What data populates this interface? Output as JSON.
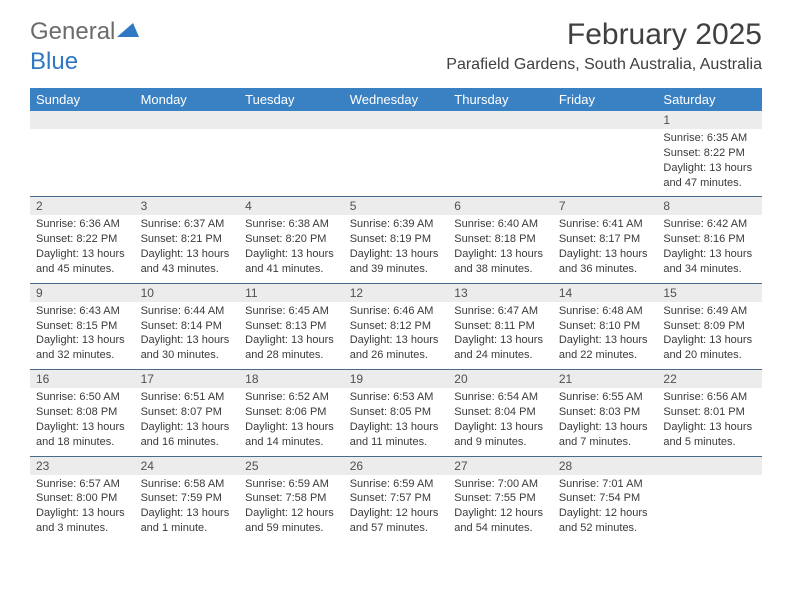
{
  "logo": {
    "text1": "General",
    "text2": "Blue"
  },
  "title": {
    "month": "February 2025",
    "location": "Parafield Gardens, South Australia, Australia"
  },
  "colors": {
    "header_bg": "#3a81c4",
    "header_text": "#ffffff",
    "daynum_bg": "#ececec",
    "week_border": "#4a6a8a",
    "text": "#3a3a3a",
    "logo_gray": "#6b6b6b",
    "logo_blue": "#2f78c3"
  },
  "days": [
    "Sunday",
    "Monday",
    "Tuesday",
    "Wednesday",
    "Thursday",
    "Friday",
    "Saturday"
  ],
  "weeks": [
    {
      "nums": [
        "",
        "",
        "",
        "",
        "",
        "",
        "1"
      ],
      "cells": [
        "",
        "",
        "",
        "",
        "",
        "",
        "Sunrise: 6:35 AM\nSunset: 8:22 PM\nDaylight: 13 hours and 47 minutes."
      ]
    },
    {
      "nums": [
        "2",
        "3",
        "4",
        "5",
        "6",
        "7",
        "8"
      ],
      "cells": [
        "Sunrise: 6:36 AM\nSunset: 8:22 PM\nDaylight: 13 hours and 45 minutes.",
        "Sunrise: 6:37 AM\nSunset: 8:21 PM\nDaylight: 13 hours and 43 minutes.",
        "Sunrise: 6:38 AM\nSunset: 8:20 PM\nDaylight: 13 hours and 41 minutes.",
        "Sunrise: 6:39 AM\nSunset: 8:19 PM\nDaylight: 13 hours and 39 minutes.",
        "Sunrise: 6:40 AM\nSunset: 8:18 PM\nDaylight: 13 hours and 38 minutes.",
        "Sunrise: 6:41 AM\nSunset: 8:17 PM\nDaylight: 13 hours and 36 minutes.",
        "Sunrise: 6:42 AM\nSunset: 8:16 PM\nDaylight: 13 hours and 34 minutes."
      ]
    },
    {
      "nums": [
        "9",
        "10",
        "11",
        "12",
        "13",
        "14",
        "15"
      ],
      "cells": [
        "Sunrise: 6:43 AM\nSunset: 8:15 PM\nDaylight: 13 hours and 32 minutes.",
        "Sunrise: 6:44 AM\nSunset: 8:14 PM\nDaylight: 13 hours and 30 minutes.",
        "Sunrise: 6:45 AM\nSunset: 8:13 PM\nDaylight: 13 hours and 28 minutes.",
        "Sunrise: 6:46 AM\nSunset: 8:12 PM\nDaylight: 13 hours and 26 minutes.",
        "Sunrise: 6:47 AM\nSunset: 8:11 PM\nDaylight: 13 hours and 24 minutes.",
        "Sunrise: 6:48 AM\nSunset: 8:10 PM\nDaylight: 13 hours and 22 minutes.",
        "Sunrise: 6:49 AM\nSunset: 8:09 PM\nDaylight: 13 hours and 20 minutes."
      ]
    },
    {
      "nums": [
        "16",
        "17",
        "18",
        "19",
        "20",
        "21",
        "22"
      ],
      "cells": [
        "Sunrise: 6:50 AM\nSunset: 8:08 PM\nDaylight: 13 hours and 18 minutes.",
        "Sunrise: 6:51 AM\nSunset: 8:07 PM\nDaylight: 13 hours and 16 minutes.",
        "Sunrise: 6:52 AM\nSunset: 8:06 PM\nDaylight: 13 hours and 14 minutes.",
        "Sunrise: 6:53 AM\nSunset: 8:05 PM\nDaylight: 13 hours and 11 minutes.",
        "Sunrise: 6:54 AM\nSunset: 8:04 PM\nDaylight: 13 hours and 9 minutes.",
        "Sunrise: 6:55 AM\nSunset: 8:03 PM\nDaylight: 13 hours and 7 minutes.",
        "Sunrise: 6:56 AM\nSunset: 8:01 PM\nDaylight: 13 hours and 5 minutes."
      ]
    },
    {
      "nums": [
        "23",
        "24",
        "25",
        "26",
        "27",
        "28",
        ""
      ],
      "cells": [
        "Sunrise: 6:57 AM\nSunset: 8:00 PM\nDaylight: 13 hours and 3 minutes.",
        "Sunrise: 6:58 AM\nSunset: 7:59 PM\nDaylight: 13 hours and 1 minute.",
        "Sunrise: 6:59 AM\nSunset: 7:58 PM\nDaylight: 12 hours and 59 minutes.",
        "Sunrise: 6:59 AM\nSunset: 7:57 PM\nDaylight: 12 hours and 57 minutes.",
        "Sunrise: 7:00 AM\nSunset: 7:55 PM\nDaylight: 12 hours and 54 minutes.",
        "Sunrise: 7:01 AM\nSunset: 7:54 PM\nDaylight: 12 hours and 52 minutes.",
        ""
      ]
    }
  ]
}
